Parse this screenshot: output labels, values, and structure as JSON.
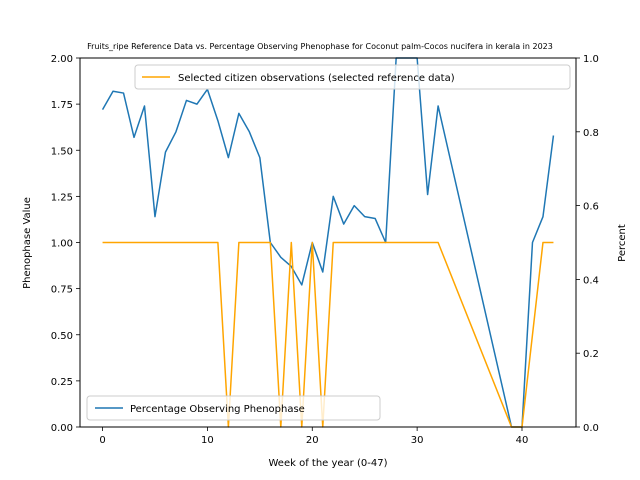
{
  "chart_data": {
    "type": "line",
    "title": "Fruits_ripe Reference Data vs. Percentage Observing Phenophase for Coconut palm-Cocos nucifera in kerala in 2023",
    "xlabel": "Week of the year (0-47)",
    "ylabel_left": "Phenophase Value",
    "ylabel_right": "Percent",
    "xlim": [
      -2.15,
      45.15
    ],
    "ylim_left": [
      0,
      2.0
    ],
    "ylim_right": [
      0,
      1.0
    ],
    "x_ticks": [
      0,
      10,
      20,
      30,
      40
    ],
    "y_left_ticks": [
      "0.00",
      "0.25",
      "0.50",
      "0.75",
      "1.00",
      "1.25",
      "1.50",
      "1.75",
      "2.00"
    ],
    "y_right_ticks": [
      "0.0",
      "0.2",
      "0.4",
      "0.6",
      "0.8",
      "1.0"
    ],
    "series": [
      {
        "name": "Percentage Observing Phenophase",
        "axis": "left",
        "color": "#1f77b4",
        "legend_position": "lower left",
        "x": [
          0,
          1,
          2,
          3,
          4,
          5,
          6,
          7,
          8,
          9,
          10,
          11,
          12,
          13,
          14,
          15,
          16,
          17,
          18,
          19,
          20,
          21,
          22,
          23,
          24,
          25,
          26,
          27,
          28,
          29,
          30,
          31,
          32,
          39,
          40,
          41,
          42,
          43
        ],
        "values": [
          1.72,
          1.82,
          1.81,
          1.57,
          1.74,
          1.14,
          1.49,
          1.6,
          1.77,
          1.75,
          1.83,
          1.66,
          1.46,
          1.7,
          1.6,
          1.46,
          1.0,
          0.92,
          0.87,
          0.77,
          1.0,
          0.84,
          1.25,
          1.1,
          1.2,
          1.14,
          1.13,
          1.0,
          2.0,
          2.0,
          2.0,
          1.26,
          1.74,
          0.0,
          0.0,
          1.0,
          1.14,
          1.58
        ]
      },
      {
        "name": "Selected citizen observations (selected reference data)",
        "axis": "right",
        "color": "#ffa500",
        "legend_position": "upper right",
        "x": [
          0,
          11,
          12,
          13,
          16,
          17,
          18,
          19,
          20,
          21,
          22,
          32,
          39,
          40,
          42,
          43
        ],
        "values": [
          0.5,
          0.5,
          0.0,
          0.5,
          0.5,
          0.0,
          0.5,
          0.0,
          0.5,
          0.0,
          0.5,
          0.5,
          0.0,
          0.0,
          0.5,
          0.5
        ]
      }
    ]
  }
}
